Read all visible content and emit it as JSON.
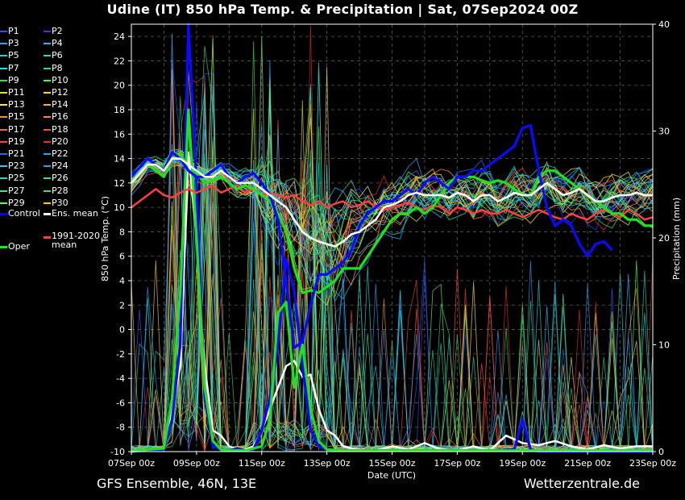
{
  "title": "Udine  (IT)  850 hPa Temp. & Precipitation | Sat, 07Sep2024 00Z",
  "footer": {
    "model": "GFS Ensemble, 46N, 13E",
    "source": "Wetterzentrale.de"
  },
  "chart_data": {
    "type": "line",
    "xlabel": "Date (UTC)",
    "ylabel": "850 hPa Temp. (°C)",
    "y2label": "Precipitation (mm)",
    "ylim": [
      -10,
      25
    ],
    "y2lim": [
      0,
      40
    ],
    "xlim": [
      0,
      16
    ],
    "yticks": [
      -10,
      -8,
      -6,
      -4,
      -2,
      0,
      2,
      4,
      6,
      8,
      10,
      12,
      14,
      16,
      18,
      20,
      22,
      24
    ],
    "y2ticks": [
      0,
      10,
      20,
      30,
      40
    ],
    "xtick_labels": [
      "07Sep 00z",
      "09Sep 00z",
      "11Sep 00z",
      "13Sep 00z",
      "15Sep 00z",
      "17Sep 00z",
      "19Sep 00z",
      "21Sep 00z",
      "23Sep 00z"
    ],
    "grid": true,
    "legend_position": "left-outside",
    "legend": [
      {
        "label": "P1",
        "color": "#3050ff"
      },
      {
        "label": "P2",
        "color": "#2040ff"
      },
      {
        "label": "P3",
        "color": "#30a0ff"
      },
      {
        "label": "P4",
        "color": "#20b8ff"
      },
      {
        "label": "P5",
        "color": "#20d0d0"
      },
      {
        "label": "P6",
        "color": "#20e0b0"
      },
      {
        "label": "P7",
        "color": "#20e0e0"
      },
      {
        "label": "P8",
        "color": "#20e080"
      },
      {
        "label": "P9",
        "color": "#30e060"
      },
      {
        "label": "P10",
        "color": "#40ff40"
      },
      {
        "label": "P11",
        "color": "#e0e040"
      },
      {
        "label": "P12",
        "color": "#ffd040"
      },
      {
        "label": "P13",
        "color": "#ffe060"
      },
      {
        "label": "P14",
        "color": "#ffb030"
      },
      {
        "label": "P15",
        "color": "#ff9030"
      },
      {
        "label": "P16",
        "color": "#ff8040"
      },
      {
        "label": "P17",
        "color": "#ff6040"
      },
      {
        "label": "P18",
        "color": "#ff5040"
      },
      {
        "label": "P19",
        "color": "#ff4040"
      },
      {
        "label": "P20",
        "color": "#e03030"
      },
      {
        "label": "P21",
        "color": "#3060ff"
      },
      {
        "label": "P22",
        "color": "#30a0ff"
      },
      {
        "label": "P23",
        "color": "#40c0ff"
      },
      {
        "label": "P24",
        "color": "#30a0e0"
      },
      {
        "label": "P25",
        "color": "#30d0b0"
      },
      {
        "label": "P26",
        "color": "#30e0a0"
      },
      {
        "label": "P27",
        "color": "#40e090"
      },
      {
        "label": "P28",
        "color": "#40e070"
      },
      {
        "label": "P29",
        "color": "#60ff60"
      },
      {
        "label": "P30",
        "color": "#ffd000"
      },
      {
        "label": "Control",
        "color": "#0000ff"
      },
      {
        "label": "Ens. mean",
        "color": "#ffffff"
      },
      {
        "label": "1991-2020 mean",
        "color": "#ff4040"
      },
      {
        "label": "Oper",
        "color": "#00ff00"
      }
    ],
    "series_main": [
      {
        "name": "Control",
        "color": "#0a0aff",
        "width": 3.2,
        "x": [
          0,
          0.5,
          0.75,
          1,
          1.25,
          1.5,
          1.75,
          2,
          2.25,
          2.5,
          2.75,
          3,
          3.25,
          3.5,
          3.75,
          4,
          4.25,
          4.5,
          4.75,
          5,
          5.25,
          5.5,
          5.75,
          6,
          6.25,
          6.5,
          6.75,
          7,
          7.25,
          7.5,
          7.75,
          8,
          8.25,
          8.5,
          8.75,
          9,
          9.25,
          9.5,
          9.75,
          10,
          10.25,
          10.5,
          10.75,
          11,
          11.25,
          11.5,
          11.75,
          12,
          12.25,
          12.5,
          12.75,
          13,
          13.25,
          13.5,
          13.75,
          14,
          14.25,
          14.5,
          14.75,
          15,
          15.25,
          15.5,
          15.75,
          16
        ],
        "y": [
          12.5,
          14,
          13.5,
          13,
          14.5,
          14,
          13,
          12.5,
          12.5,
          13,
          13.5,
          12.5,
          12,
          12.5,
          12.8,
          12,
          11,
          9,
          4,
          -1.5,
          -1,
          2,
          4.5,
          4.5,
          5,
          5.5,
          6.5,
          8.5,
          9.5,
          10,
          10.5,
          10.5,
          11,
          11.5,
          11,
          12,
          12.5,
          12,
          11.5,
          12.5,
          12.5,
          13,
          13,
          13.5,
          14,
          14.5,
          15,
          16.5,
          16.7,
          13,
          10,
          8.5,
          9,
          8.5,
          7,
          6,
          7,
          7.2,
          6.5,
          null,
          null,
          null,
          null,
          null
        ]
      },
      {
        "name": "Ens. mean",
        "color": "#ffffff",
        "width": 2.5,
        "x": [
          0,
          0.5,
          0.75,
          1,
          1.25,
          1.5,
          1.75,
          2,
          2.25,
          2.5,
          2.75,
          3,
          3.25,
          3.5,
          3.75,
          4,
          4.25,
          4.5,
          4.75,
          5,
          5.25,
          5.5,
          5.75,
          6,
          6.25,
          6.5,
          6.75,
          7,
          7.25,
          7.5,
          7.75,
          8,
          8.25,
          8.5,
          8.75,
          9,
          9.25,
          9.5,
          9.75,
          10,
          10.25,
          10.5,
          10.75,
          11,
          11.25,
          11.5,
          11.75,
          12,
          12.25,
          12.5,
          12.75,
          13,
          13.25,
          13.5,
          13.75,
          14,
          14.25,
          14.5,
          14.75,
          15,
          15.25,
          15.5,
          15.75,
          16
        ],
        "y": [
          12,
          13.5,
          13.5,
          13,
          14,
          14,
          13.5,
          13,
          12.5,
          12.5,
          13,
          12.5,
          12,
          12,
          12,
          11.5,
          11,
          10.5,
          10,
          9,
          8,
          7.5,
          7.2,
          7,
          6.8,
          7.2,
          7.8,
          8,
          8.5,
          9,
          10,
          10.2,
          10.5,
          11,
          11.2,
          11,
          11,
          11,
          10.8,
          11.2,
          11,
          10.5,
          11,
          11,
          10.5,
          10.8,
          11.2,
          11,
          11,
          11.5,
          12,
          11.5,
          11,
          11.2,
          11.5,
          11,
          10.5,
          10.5,
          10.8,
          11,
          11,
          11.2,
          11,
          11
        ]
      },
      {
        "name": "1991-2020 mean",
        "color": "#ff4040",
        "width": 2.5,
        "x": [
          0,
          0.5,
          0.75,
          1,
          1.25,
          1.5,
          1.75,
          2,
          2.25,
          2.5,
          2.75,
          3,
          3.25,
          3.5,
          3.75,
          4,
          4.25,
          4.5,
          4.75,
          5,
          5.25,
          5.5,
          5.75,
          6,
          6.25,
          6.5,
          6.75,
          7,
          7.25,
          7.5,
          7.75,
          8,
          8.25,
          8.5,
          8.75,
          9,
          9.25,
          9.5,
          9.75,
          10,
          10.25,
          10.5,
          10.75,
          11,
          11.25,
          11.5,
          11.75,
          12,
          12.25,
          12.5,
          12.75,
          13,
          13.25,
          13.5,
          13.75,
          14,
          14.25,
          14.5,
          14.75,
          15,
          15.25,
          15.5,
          15.75,
          16
        ],
        "y": [
          10,
          11,
          11.5,
          11,
          10.8,
          11.2,
          11.5,
          11.2,
          11.5,
          11.8,
          11.2,
          11.5,
          11.8,
          11.2,
          11.5,
          11,
          11.2,
          11,
          10.8,
          11,
          10.5,
          10.2,
          10.5,
          10,
          10.3,
          10.5,
          10,
          10.2,
          10.5,
          10,
          9.8,
          10,
          10.2,
          10.4,
          10,
          9.8,
          10.2,
          10,
          9.5,
          10,
          9.8,
          9.5,
          9.8,
          9.5,
          9.5,
          9.8,
          9.5,
          9.2,
          9.5,
          9.8,
          9.5,
          9.2,
          9,
          9.5,
          9.2,
          9,
          9.5,
          9.8,
          9.5,
          9.2,
          9.8,
          9.5,
          9,
          9.2
        ]
      },
      {
        "name": "Oper",
        "color": "#20e020",
        "width": 3.2,
        "x": [
          0,
          0.5,
          0.75,
          1,
          1.25,
          1.5,
          1.75,
          2,
          2.25,
          2.5,
          2.75,
          3,
          3.25,
          3.5,
          3.75,
          4,
          4.25,
          4.5,
          4.75,
          5,
          5.25,
          5.5,
          5.75,
          6,
          6.25,
          6.5,
          6.75,
          7,
          7.25,
          7.5,
          7.75,
          8,
          8.25,
          8.5,
          8.75,
          9,
          9.25,
          9.5,
          9.75,
          10,
          10.25,
          10.5,
          10.75,
          11,
          11.25,
          11.5,
          11.75,
          12,
          12.25,
          12.5,
          12.75,
          13,
          13.25,
          13.5,
          13.75,
          14,
          14.25,
          14.5,
          14.75,
          15,
          15.25,
          15.5,
          15.75,
          16
        ],
        "y": [
          12,
          13.5,
          13,
          12.5,
          14,
          14.5,
          13,
          12.8,
          12,
          12.2,
          12.5,
          12,
          11.5,
          11.8,
          11.5,
          11,
          10.5,
          9.5,
          8,
          5,
          3,
          3.2,
          3,
          3.5,
          4,
          5,
          5,
          5,
          6,
          7,
          8,
          9,
          9.5,
          9.5,
          10,
          9.5,
          10,
          11,
          12,
          12.5,
          12.5,
          12.5,
          12.2,
          12,
          12.2,
          12,
          11.5,
          11,
          11,
          12.5,
          13,
          13,
          12.5,
          12,
          11.5,
          11,
          10.5,
          10,
          9.5,
          9.5,
          9,
          9,
          8.5,
          8.5
        ]
      }
    ],
    "precip_main": [
      {
        "name": "Ens. mean precip",
        "color": "#ffffff",
        "width": 2.5,
        "x": [
          0,
          0.5,
          1,
          1.5,
          1.75,
          2,
          2.25,
          2.5,
          2.75,
          3,
          3.25,
          3.5,
          3.75,
          4,
          4.25,
          4.5,
          4.75,
          5,
          5.25,
          5.5,
          5.75,
          6,
          6.25,
          6.5,
          6.75,
          7,
          7.5,
          8,
          8.5,
          9,
          9.5,
          10,
          10.5,
          11,
          11.5,
          12,
          12.5,
          13,
          13.5,
          14,
          14.5,
          15,
          15.5,
          16
        ],
        "y": [
          0,
          0.1,
          0.2,
          8,
          28,
          20,
          8,
          2,
          1.5,
          0.5,
          0.2,
          0.2,
          0.5,
          2,
          4,
          6,
          8,
          8.5,
          7,
          7.2,
          4,
          2,
          1.5,
          0.5,
          0.3,
          0.2,
          0.1,
          0.5,
          0.2,
          0.8,
          0.2,
          0.1,
          0.5,
          0.1,
          1.5,
          0.8,
          0.6,
          1,
          0.5,
          0.2,
          0.6,
          0.3,
          0.5,
          0.5
        ]
      },
      {
        "name": "Control precip",
        "color": "#0a0aff",
        "width": 3.2,
        "x": [
          0,
          0.5,
          1,
          1.25,
          1.5,
          1.75,
          2,
          2.25,
          2.5,
          2.75,
          3,
          3.25,
          3.5,
          3.75,
          4,
          4.25,
          4.5,
          4.75,
          5,
          5.25,
          5.5,
          5.75,
          6,
          6.5,
          7,
          8,
          9,
          10,
          11,
          11.75,
          12,
          12.25,
          12.5,
          13,
          14,
          15,
          16
        ],
        "y": [
          0,
          0.1,
          0.2,
          3,
          10,
          40,
          25,
          5,
          0.5,
          0.2,
          0.1,
          0.3,
          0.1,
          0.2,
          2,
          5,
          10,
          18,
          15,
          8,
          2,
          0.5,
          0.2,
          0.1,
          0.1,
          0.1,
          0.1,
          0.1,
          0.1,
          0.2,
          3,
          0.2,
          0,
          0,
          0,
          0,
          0
        ]
      },
      {
        "name": "Oper precip",
        "color": "#20e020",
        "width": 3.2,
        "x": [
          0,
          0.5,
          1,
          1.25,
          1.5,
          1.75,
          2,
          2.25,
          2.5,
          2.75,
          3,
          3.5,
          4,
          4.25,
          4.5,
          4.75,
          5,
          5.25,
          5.5,
          5.75,
          6,
          6.5,
          7,
          8,
          9,
          10,
          11,
          12,
          13,
          14,
          15,
          16
        ],
        "y": [
          0,
          0.2,
          0.3,
          5,
          15,
          32,
          20,
          6,
          1,
          0.2,
          0.1,
          0.1,
          0.5,
          3,
          13,
          14,
          6,
          10,
          4,
          1,
          0.2,
          0.1,
          0.1,
          0.1,
          0.1,
          0.1,
          0.1,
          0.1,
          0.1,
          0.1,
          0.1,
          0.1
        ]
      }
    ]
  }
}
